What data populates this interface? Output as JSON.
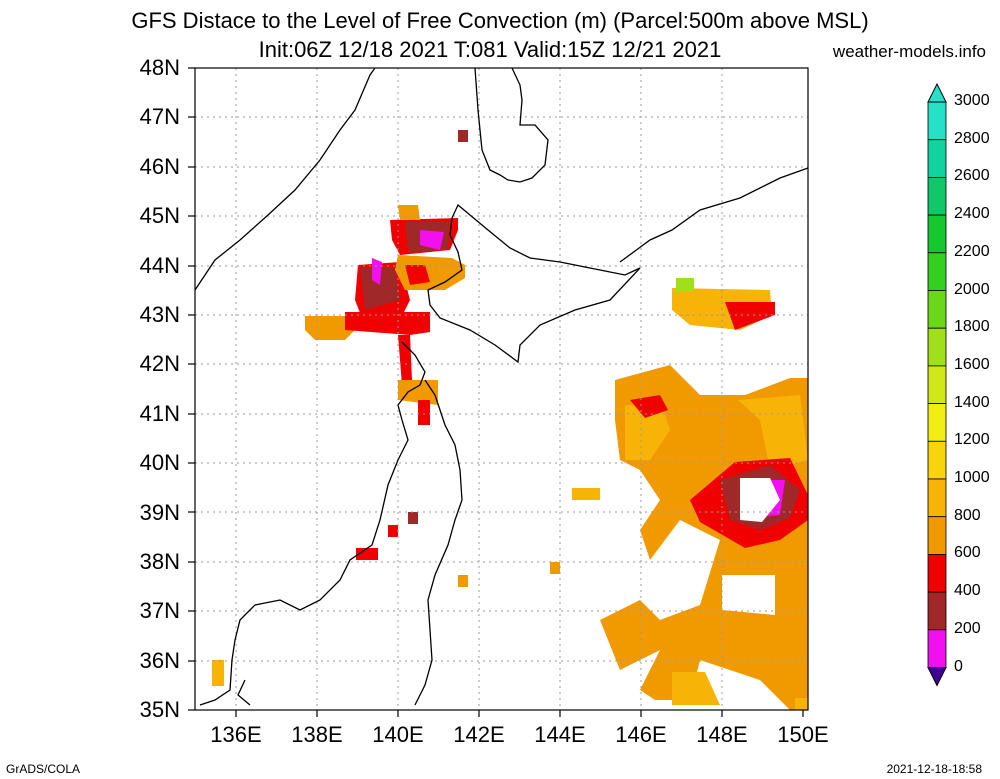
{
  "title_line1": "GFS Distace to the Level of Free Convection (m) (Parcel:500m above MSL)",
  "title_line2": "Init:06Z 12/18 2021 T:081 Valid:15Z 12/21 2021",
  "site": "weather-models.info",
  "footer_left": "GrADS/COLA",
  "footer_right": "2021-12-18-18:58",
  "lat_labels": [
    "48N",
    "47N",
    "46N",
    "45N",
    "44N",
    "43N",
    "42N",
    "41N",
    "40N",
    "39N",
    "38N",
    "37N",
    "36N",
    "35N"
  ],
  "lon_labels": [
    "136E",
    "138E",
    "140E",
    "142E",
    "144E",
    "146E",
    "148E",
    "150E"
  ],
  "colorbar": {
    "labels": [
      "3000",
      "2800",
      "2600",
      "2400",
      "2200",
      "2000",
      "1800",
      "1600",
      "1400",
      "1200",
      "1000",
      "800",
      "600",
      "400",
      "200",
      "0"
    ],
    "colors": [
      "#26e0c8",
      "#12d2a0",
      "#10c868",
      "#16c830",
      "#34d020",
      "#6ad818",
      "#a0e01a",
      "#d0e818",
      "#f2ee14",
      "#f8d40a",
      "#f8b406",
      "#f09a00",
      "#f00000",
      "#a02828",
      "#f010f0",
      "#400098"
    ]
  }
}
